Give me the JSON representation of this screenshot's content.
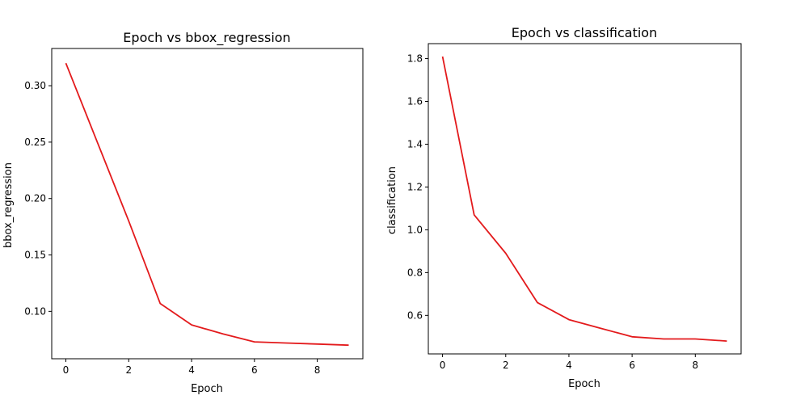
{
  "chart_data": [
    {
      "type": "line",
      "title": "Epoch vs bbox_regression",
      "xlabel": "Epoch",
      "ylabel": "bbox_regression",
      "xlim": [
        -0.45,
        9.45
      ],
      "ylim": [
        0.058,
        0.333
      ],
      "xticks": [
        0,
        2,
        4,
        6,
        8
      ],
      "yticks": [
        0.1,
        0.15,
        0.2,
        0.25,
        0.3
      ],
      "ytick_labels": [
        "0.10",
        "0.15",
        "0.20",
        "0.25",
        "0.30"
      ],
      "grid": false,
      "line_color": "#e31a1c",
      "x": [
        0,
        1,
        2,
        3,
        4,
        5,
        6,
        7,
        8,
        9
      ],
      "series": [
        {
          "values": [
            0.32,
            0.25,
            0.18,
            0.107,
            0.088,
            0.08,
            0.073,
            0.072,
            0.071,
            0.07
          ]
        }
      ]
    },
    {
      "type": "line",
      "title": "Epoch vs classification",
      "xlabel": "Epoch",
      "ylabel": "classification",
      "xlim": [
        -0.45,
        9.45
      ],
      "ylim": [
        0.42,
        1.87
      ],
      "xticks": [
        0,
        2,
        4,
        6,
        8
      ],
      "yticks": [
        0.6,
        0.8,
        1.0,
        1.2,
        1.4,
        1.6,
        1.8
      ],
      "ytick_labels": [
        "0.6",
        "0.8",
        "1.0",
        "1.2",
        "1.4",
        "1.6",
        "1.8"
      ],
      "grid": false,
      "line_color": "#e31a1c",
      "x": [
        0,
        1,
        2,
        3,
        4,
        5,
        6,
        7,
        8,
        9
      ],
      "series": [
        {
          "values": [
            1.81,
            1.07,
            0.89,
            0.66,
            0.58,
            0.54,
            0.5,
            0.49,
            0.49,
            0.48
          ]
        }
      ]
    }
  ]
}
